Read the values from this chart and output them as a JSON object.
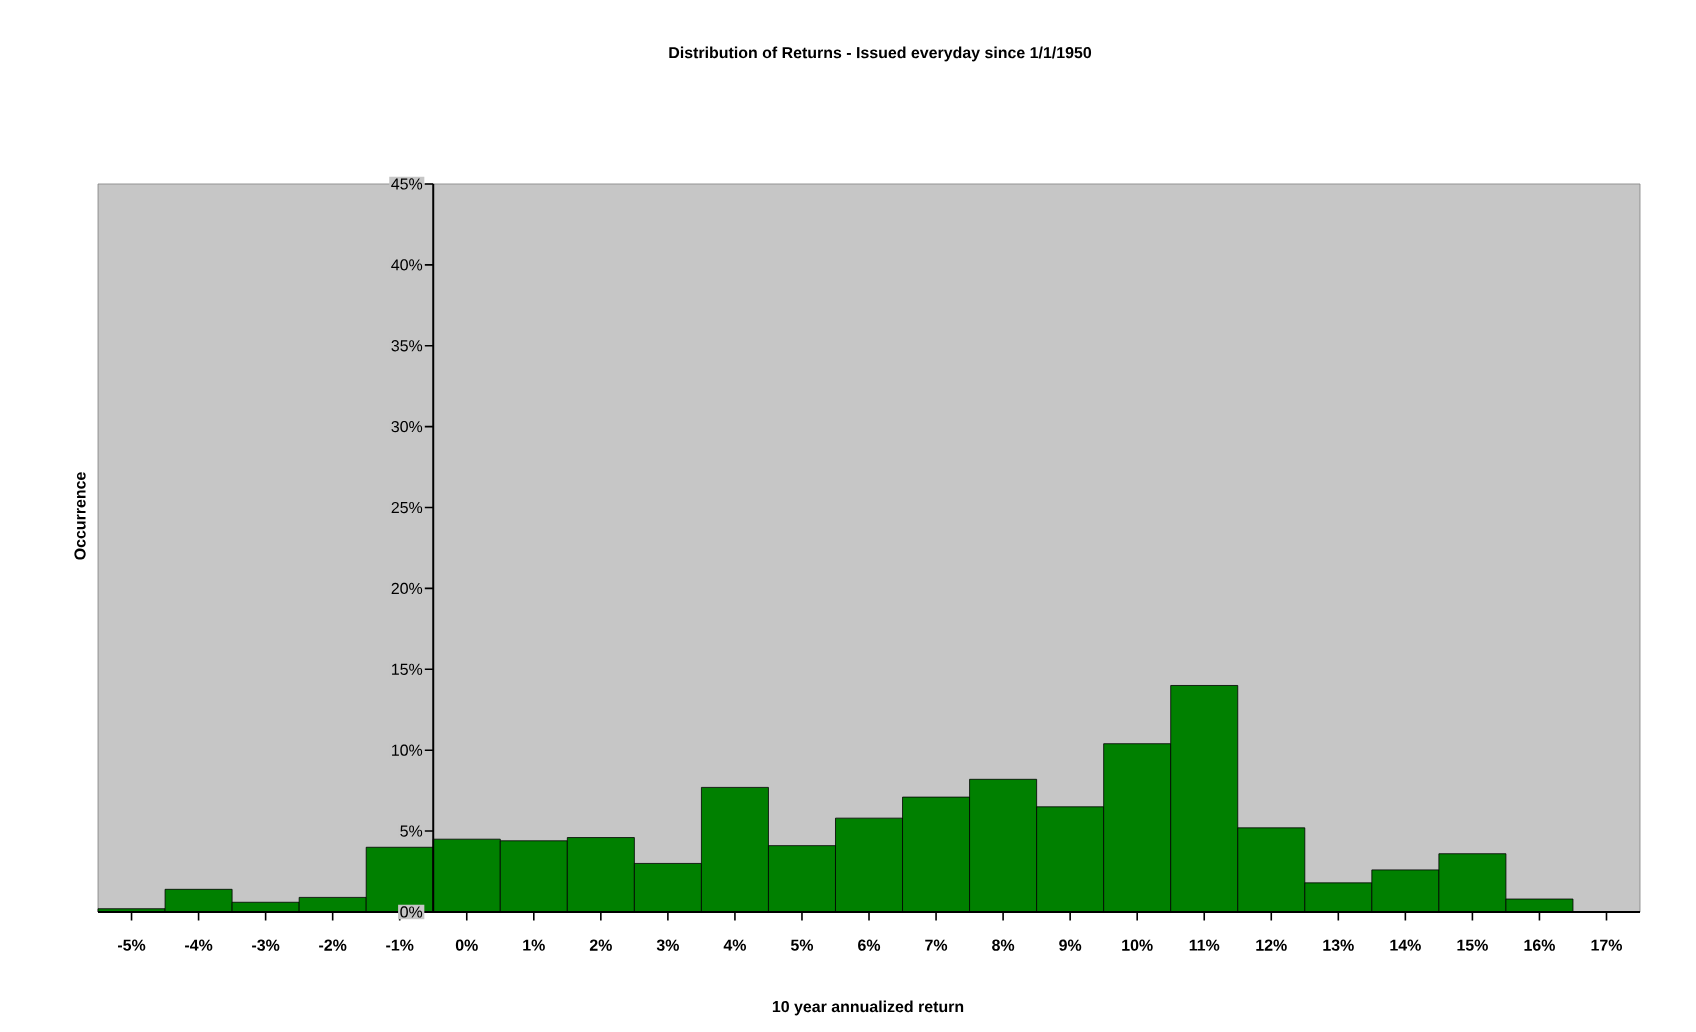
{
  "chart_data": {
    "type": "bar",
    "title": "Distribution of Returns - Issued everyday since 1/1/1950",
    "xlabel": "10 year annualized return",
    "ylabel": "Occurrence",
    "categories": [
      "-5%",
      "-4%",
      "-3%",
      "-2%",
      "-1%",
      "0%",
      "1%",
      "2%",
      "3%",
      "4%",
      "5%",
      "6%",
      "7%",
      "8%",
      "9%",
      "10%",
      "11%",
      "12%",
      "13%",
      "14%",
      "15%",
      "16%",
      "17%"
    ],
    "values": [
      0.2,
      1.4,
      0.6,
      0.9,
      4.0,
      4.5,
      4.4,
      4.6,
      3.0,
      7.7,
      4.1,
      5.8,
      7.1,
      8.2,
      6.5,
      10.4,
      14.0,
      5.2,
      1.8,
      2.6,
      3.6,
      0.8,
      0
    ],
    "color": "#008000",
    "ylim": [
      0,
      45
    ],
    "yticks": [
      {
        "value": 0,
        "label": "0%"
      },
      {
        "value": 5,
        "label": "5%"
      },
      {
        "value": 10,
        "label": "10%"
      },
      {
        "value": 15,
        "label": "15%"
      },
      {
        "value": 20,
        "label": "20%"
      },
      {
        "value": 25,
        "label": "25%"
      },
      {
        "value": 30,
        "label": "30%"
      },
      {
        "value": 35,
        "label": "35%"
      },
      {
        "value": 40,
        "label": "40%"
      },
      {
        "value": 45,
        "label": "45%"
      }
    ]
  }
}
